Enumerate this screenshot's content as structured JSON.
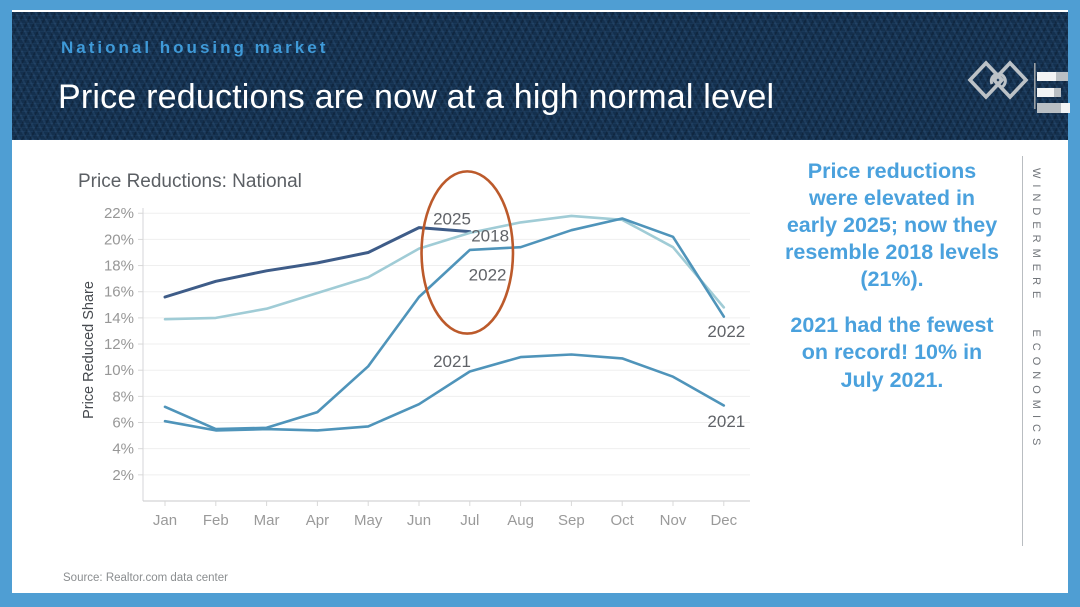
{
  "frame": {
    "border_color": "#4f9ed3",
    "background": "#ffffff"
  },
  "header": {
    "eyebrow": "National housing market",
    "title": "Price reductions are now at a high normal level",
    "eyebrow_color": "#3f9ad8",
    "background_color": "#14304e"
  },
  "logo": {
    "name": "Windermere Economics logo"
  },
  "chart_data": {
    "type": "line",
    "title": "Price Reductions: National",
    "xlabel": "",
    "ylabel": "Price Reduced Share",
    "categories": [
      "Jan",
      "Feb",
      "Mar",
      "Apr",
      "May",
      "Jun",
      "Jul",
      "Aug",
      "Sep",
      "Oct",
      "Nov",
      "Dec"
    ],
    "y_tick_labels": [
      "22%",
      "20%",
      "18%",
      "16%",
      "14%",
      "12%",
      "10%",
      "8%",
      "6%",
      "4%",
      "2%"
    ],
    "ylim": [
      0,
      23
    ],
    "grid": true,
    "legend_position": "inline series labels",
    "series": [
      {
        "name": "2025",
        "color": "#3e5c88",
        "values": [
          15.6,
          16.8,
          17.6,
          18.2,
          19.0,
          20.9,
          20.6,
          null,
          null,
          null,
          null,
          null
        ]
      },
      {
        "name": "2018",
        "color": "#a0ccd6",
        "values": [
          13.9,
          14.0,
          14.7,
          15.9,
          17.1,
          19.3,
          20.5,
          21.3,
          21.8,
          21.5,
          19.4,
          14.8
        ]
      },
      {
        "name": "2022",
        "color": "#4f94ba",
        "values": [
          7.2,
          5.5,
          5.6,
          6.8,
          10.3,
          15.6,
          19.2,
          19.4,
          20.7,
          21.6,
          20.2,
          14.1
        ]
      },
      {
        "name": "2021",
        "color": "#4f94ba",
        "values": [
          6.1,
          5.4,
          5.5,
          5.4,
          5.7,
          7.4,
          9.9,
          11.0,
          11.2,
          10.9,
          9.5,
          7.3
        ]
      }
    ],
    "series_labels": [
      {
        "text": "2025",
        "x": 5.65,
        "y": 21.6
      },
      {
        "text": "2018",
        "x": 6.4,
        "y": 20.3
      },
      {
        "text": "2022",
        "x": 6.35,
        "y": 17.3
      },
      {
        "text": "2021",
        "x": 5.65,
        "y": 10.7
      },
      {
        "text": "2022",
        "x": 11.05,
        "y": 13.0
      },
      {
        "text": "2021",
        "x": 11.05,
        "y": 6.1
      }
    ],
    "annotation_ellipse": {
      "center_month": 5.95,
      "center_pct": 19.0,
      "rx_months": 0.9,
      "ry_pct": 6.2,
      "color": "#bc5a2b"
    }
  },
  "notes": {
    "color": "#4aa1dd",
    "paragraph1_lines": [
      "Price reductions",
      "were elevated in",
      "early 2025; now they",
      "resemble 2018 levels",
      "(21%)."
    ],
    "paragraph2_lines": [
      "2021 had the fewest",
      "on record! 10% in",
      "July 2021."
    ]
  },
  "watermark": {
    "text": "WINDERMERE ECONOMICS"
  },
  "footer": {
    "source": "Source: Realtor.com data center"
  }
}
